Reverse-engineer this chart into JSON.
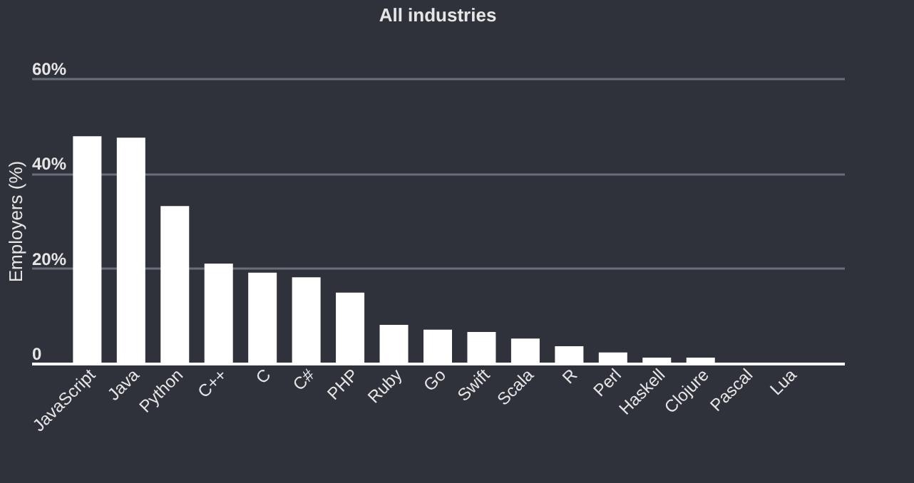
{
  "chart_data": {
    "type": "bar",
    "title": "All industries",
    "ylabel": "Employers (%)",
    "categories": [
      "JavaScript",
      "Java",
      "Python",
      "C++",
      "C",
      "C#",
      "PHP",
      "Ruby",
      "Go",
      "Swift",
      "Scala",
      "R",
      "Perl",
      "Haskell",
      "Clojure",
      "Pascal",
      "Lua"
    ],
    "values": [
      47.8,
      47.5,
      33.1,
      21.0,
      19.1,
      18.1,
      14.9,
      8.1,
      7.1,
      6.6,
      5.2,
      3.6,
      2.3,
      1.2,
      1.2,
      0,
      0
    ],
    "color": "#ffffff",
    "ylim": [
      0,
      60
    ],
    "yticks": [
      {
        "value": 0,
        "label": "0"
      },
      {
        "value": 20,
        "label": "20%"
      },
      {
        "value": 40,
        "label": "40%"
      },
      {
        "value": 60,
        "label": "60%"
      }
    ],
    "grid": "y"
  }
}
